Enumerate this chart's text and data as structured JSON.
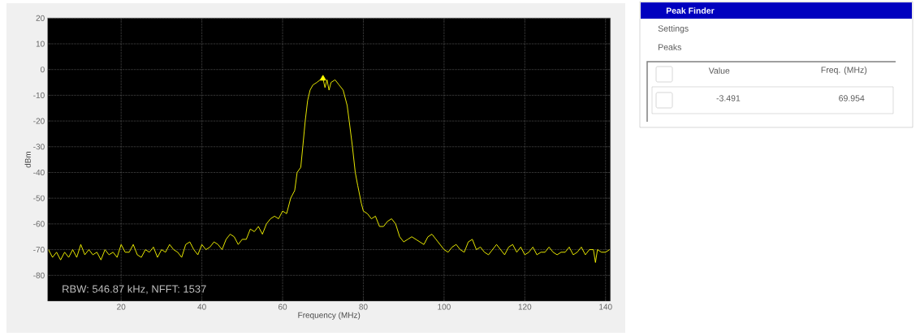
{
  "chart_data": {
    "type": "line",
    "xlabel": "Frequency (MHz)",
    "ylabel": "dBm",
    "xlim": [
      1.8,
      141.2
    ],
    "ylim": [
      -90,
      20
    ],
    "xticks": [
      20,
      40,
      60,
      80,
      100,
      120,
      140
    ],
    "yticks": [
      -80,
      -70,
      -60,
      -50,
      -40,
      -30,
      -20,
      -10,
      0,
      10,
      20
    ],
    "grid": true,
    "series": [
      {
        "color": "#ffff00",
        "x": [
          2,
          3,
          4,
          5,
          6,
          7,
          8,
          9,
          10,
          11,
          12,
          13,
          14,
          15,
          16,
          17,
          18,
          19,
          20,
          21,
          22,
          23,
          24,
          25,
          26,
          27,
          28,
          29,
          30,
          31,
          32,
          33,
          34,
          35,
          36,
          37,
          38,
          39,
          40,
          41,
          42,
          43,
          44,
          45,
          46,
          47,
          48,
          49,
          50,
          51,
          52,
          53,
          54,
          55,
          56,
          57,
          58,
          59,
          60,
          61,
          62,
          63,
          63.6,
          64.5,
          65,
          65.6,
          66.2,
          66.8,
          67.5,
          68.5,
          69.3,
          70,
          70.5,
          71,
          71.5,
          72,
          73,
          74,
          75,
          76,
          76.5,
          77.3,
          78,
          78.6,
          79.5,
          80,
          81,
          82,
          83,
          84,
          85,
          86,
          87,
          88,
          89,
          90,
          91,
          92,
          93,
          94,
          95,
          96,
          97,
          98,
          99,
          100,
          101,
          102,
          103,
          104,
          105,
          106,
          107,
          108,
          109,
          110,
          111,
          112,
          113,
          114,
          115,
          116,
          117,
          118,
          119,
          120,
          121,
          122,
          123,
          124,
          125,
          126,
          127,
          128,
          129,
          130,
          131,
          132,
          133,
          134,
          135,
          136,
          137,
          137.5,
          138,
          139,
          140,
          141
        ],
        "values": [
          -70,
          -73,
          -71,
          -74,
          -71,
          -73,
          -70,
          -73,
          -68,
          -72,
          -70,
          -72,
          -71,
          -74,
          -70,
          -72,
          -71,
          -73,
          -68,
          -71,
          -71,
          -68,
          -72,
          -73,
          -70,
          -71,
          -69,
          -73,
          -70,
          -71,
          -68,
          -70,
          -71,
          -73,
          -68,
          -67,
          -70,
          -72,
          -68,
          -70,
          -69,
          -67,
          -68,
          -70,
          -66,
          -64,
          -65,
          -68,
          -66,
          -66,
          -62,
          -63,
          -61,
          -64,
          -60,
          -58,
          -57,
          -58,
          -55,
          -56,
          -50,
          -47,
          -40,
          -38,
          -30,
          -20,
          -12,
          -8,
          -6,
          -5,
          -4,
          -3.5,
          -7,
          -4,
          -8,
          -5,
          -4,
          -6,
          -8,
          -14,
          -20,
          -30,
          -40,
          -45,
          -52,
          -55,
          -56,
          -58,
          -57,
          -61,
          -61,
          -59,
          -58,
          -60,
          -65,
          -67,
          -66,
          -65,
          -66,
          -67,
          -68,
          -65,
          -64,
          -66,
          -68,
          -70,
          -71,
          -69,
          -68,
          -70,
          -71,
          -67,
          -66,
          -70,
          -69,
          -71,
          -72,
          -70,
          -68,
          -70,
          -72,
          -69,
          -68,
          -71,
          -69,
          -72,
          -71,
          -69,
          -72,
          -71,
          -71,
          -69,
          -71,
          -72,
          -71,
          -71,
          -69,
          -72,
          -71,
          -69,
          -72,
          -70,
          -70,
          -75,
          -70,
          -71,
          -71,
          -70
        ]
      },
      {
        "type": "scatter",
        "marker": "triangle",
        "color": "#ffff00",
        "x": [
          70
        ],
        "values": [
          -3.5
        ]
      }
    ],
    "annotations": [
      "RBW: 546.87 kHz, NFFT: 1537",
      "Peak Finder",
      "Settings",
      "Peaks",
      "Value",
      "Freq. (MHz)",
      "-3.491",
      "69.954"
    ]
  }
}
